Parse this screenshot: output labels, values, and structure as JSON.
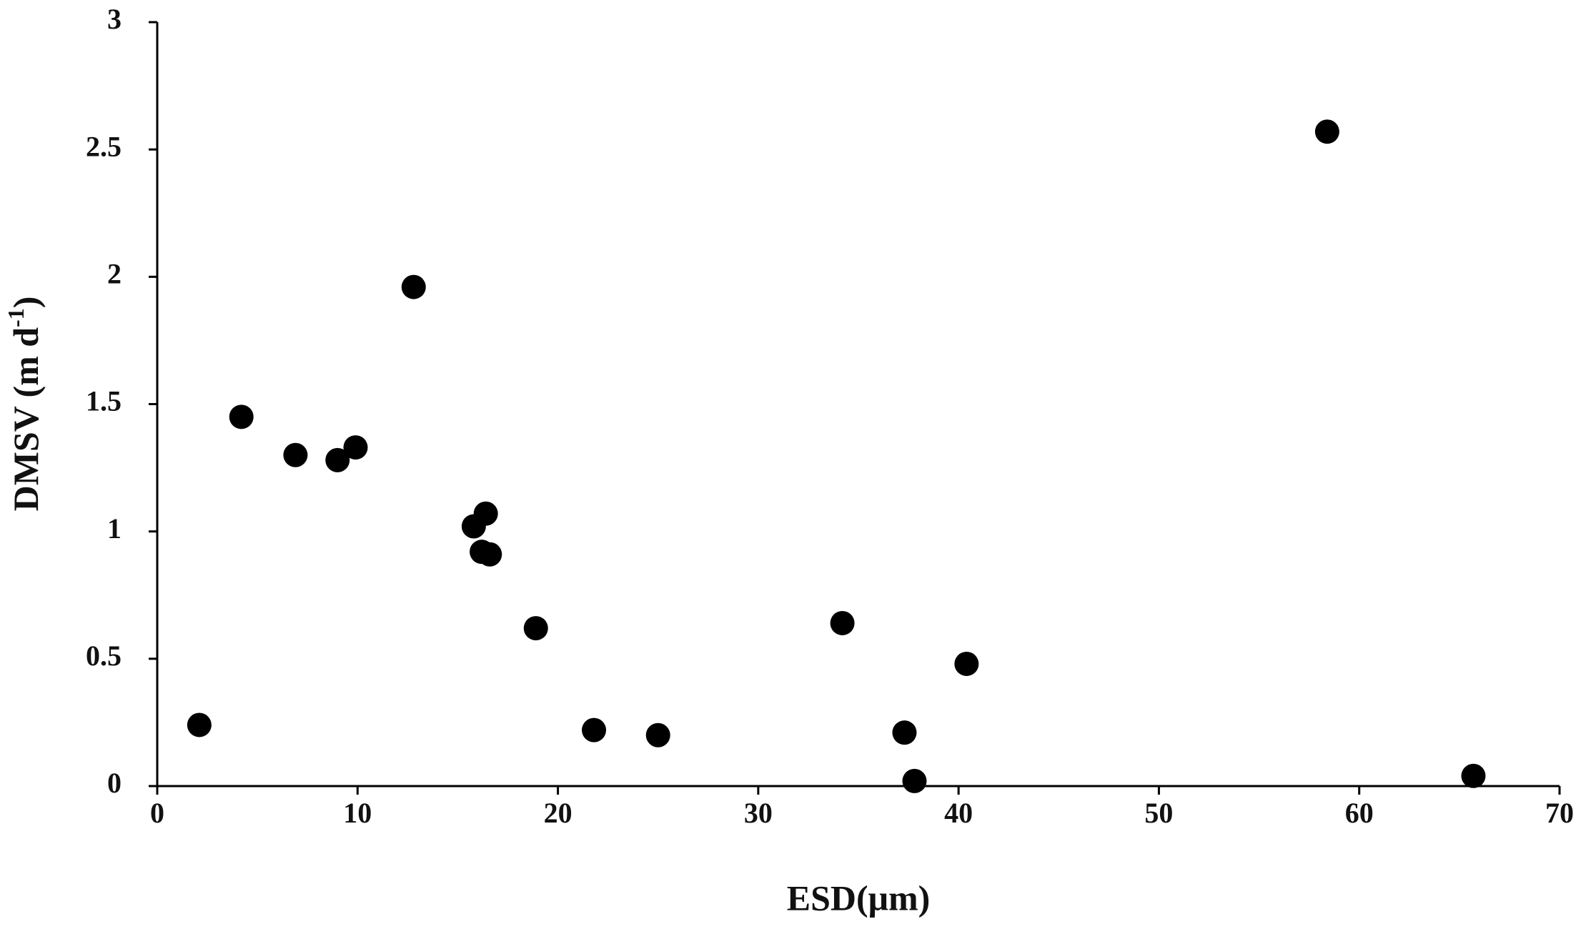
{
  "chart_data": {
    "type": "scatter",
    "x_label": "ESD(μm)",
    "y_label": [
      "DMSV (m d",
      "-1",
      ")"
    ],
    "x": [
      2.1,
      4.2,
      6.9,
      9.0,
      9.9,
      12.8,
      15.8,
      16.4,
      16.2,
      16.6,
      18.9,
      21.8,
      25.0,
      34.2,
      37.3,
      37.8,
      40.4,
      58.4,
      65.7
    ],
    "series": [
      {
        "name": "DMSV",
        "color": "#000000",
        "values": [
          0.24,
          1.45,
          1.3,
          1.28,
          1.33,
          1.96,
          1.02,
          1.07,
          0.92,
          0.91,
          0.62,
          0.22,
          0.2,
          0.64,
          0.21,
          0.02,
          0.48,
          2.57,
          0.04
        ]
      }
    ],
    "xlim": [
      0,
      70
    ],
    "xticks": [
      0,
      10,
      20,
      30,
      40,
      50,
      60,
      70
    ],
    "ylim": [
      0,
      3
    ],
    "yticks": [
      0,
      0.5,
      1,
      1.5,
      2,
      2.5,
      3
    ],
    "grid": false
  }
}
